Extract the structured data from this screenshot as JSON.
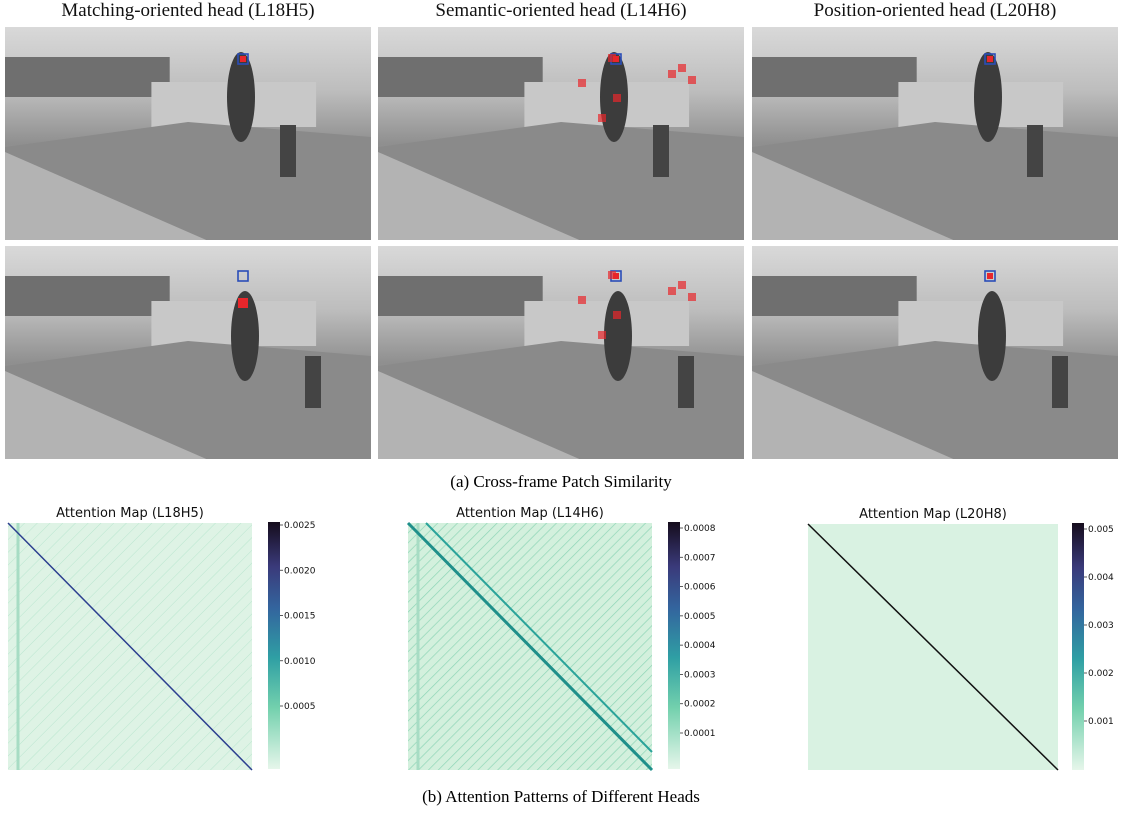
{
  "top": {
    "columns": [
      "Matching-oriented head (L18H5)",
      "Semantic-oriented head (L14H6)",
      "Position-oriented head (L20H8)"
    ],
    "caption": "(a) Cross-frame Patch Similarity"
  },
  "bottom": {
    "maps": [
      {
        "title": "Attention Map (L18H5)",
        "colorbar_ticks": [
          "0.0025",
          "0.0020",
          "0.0015",
          "0.0010",
          "0.0005"
        ]
      },
      {
        "title": "Attention Map (L14H6)",
        "colorbar_ticks": [
          "0.0008",
          "0.0007",
          "0.0006",
          "0.0005",
          "0.0004",
          "0.0003",
          "0.0002",
          "0.0001"
        ]
      },
      {
        "title": "Attention Map (L20H8)",
        "colorbar_ticks": [
          "0.005",
          "0.004",
          "0.003",
          "0.002",
          "0.001"
        ]
      }
    ],
    "caption": "(b) Attention Patterns of Different Heads"
  }
}
